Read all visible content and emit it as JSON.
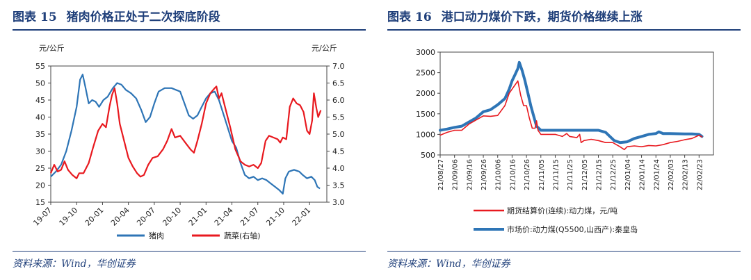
{
  "charts": [
    {
      "figure_label": "图表",
      "figure_number": "15",
      "title_text": "猪肉价格正处于二次探底阶段",
      "source": "资料来源：Wind，华创证券"
    },
    {
      "figure_label": "图表",
      "figure_number": "16",
      "title_text": "港口动力煤价下跌，期货价格继续上涨",
      "source": "资料来源：Wind，华创证券"
    }
  ],
  "chart_data": [
    {
      "type": "line",
      "title": "猪肉价格正处于二次探底阶段",
      "y_unit_left": "元/公斤",
      "y_unit_right": "元/公斤",
      "ylim_left": [
        15,
        55
      ],
      "ylim_right": [
        3.0,
        7.0
      ],
      "yticks_left": [
        "15",
        "20",
        "25",
        "30",
        "35",
        "40",
        "45",
        "50",
        "55"
      ],
      "yticks_right": [
        "3.0",
        "3.5",
        "4.0",
        "4.5",
        "5.0",
        "5.5",
        "6.0",
        "6.5",
        "7.0"
      ],
      "x_domain": [
        0,
        32
      ],
      "x_ticks": [
        {
          "t": 0,
          "label": "19-07"
        },
        {
          "t": 3,
          "label": "19-10"
        },
        {
          "t": 6,
          "label": "20-01"
        },
        {
          "t": 9,
          "label": "20-04"
        },
        {
          "t": 12,
          "label": "20-07"
        },
        {
          "t": 15,
          "label": "20-10"
        },
        {
          "t": 18,
          "label": "21-01"
        },
        {
          "t": 21,
          "label": "21-04"
        },
        {
          "t": 24,
          "label": "21-07"
        },
        {
          "t": 27,
          "label": "21-10"
        },
        {
          "t": 30,
          "label": "22-01"
        }
      ],
      "series": [
        {
          "name": "猪肉",
          "axis": "left",
          "color": "#2e75b6",
          "points": [
            [
              0,
              22.5
            ],
            [
              0.6,
              24
            ],
            [
              1.2,
              26
            ],
            [
              1.8,
              30
            ],
            [
              2.4,
              36
            ],
            [
              3,
              43
            ],
            [
              3.4,
              51
            ],
            [
              3.7,
              52.5
            ],
            [
              4,
              49
            ],
            [
              4.4,
              44
            ],
            [
              4.8,
              45
            ],
            [
              5.2,
              44.5
            ],
            [
              5.6,
              43
            ],
            [
              6.1,
              45
            ],
            [
              6.6,
              46
            ],
            [
              7.2,
              48.5
            ],
            [
              7.7,
              50
            ],
            [
              8.2,
              49.5
            ],
            [
              8.7,
              48
            ],
            [
              9.3,
              47
            ],
            [
              9.9,
              45.5
            ],
            [
              10.5,
              42
            ],
            [
              11,
              38.5
            ],
            [
              11.5,
              40
            ],
            [
              12,
              44
            ],
            [
              12.5,
              47.5
            ],
            [
              13.2,
              48.5
            ],
            [
              14,
              48.5
            ],
            [
              14.5,
              48
            ],
            [
              15,
              47.5
            ],
            [
              15.5,
              44
            ],
            [
              16,
              40.5
            ],
            [
              16.5,
              39.5
            ],
            [
              17,
              40.5
            ],
            [
              17.5,
              43
            ],
            [
              18,
              45.5
            ],
            [
              18.5,
              47
            ],
            [
              19,
              47.5
            ],
            [
              19.5,
              45
            ],
            [
              20,
              41
            ],
            [
              20.5,
              37
            ],
            [
              21,
              33
            ],
            [
              21.5,
              31
            ],
            [
              22,
              26.5
            ],
            [
              22.5,
              23
            ],
            [
              23,
              22
            ],
            [
              23.5,
              22.5
            ],
            [
              24,
              21.5
            ],
            [
              24.5,
              22
            ],
            [
              25,
              21.5
            ],
            [
              25.5,
              20.5
            ],
            [
              26,
              19.5
            ],
            [
              26.5,
              18.5
            ],
            [
              26.9,
              17.5
            ],
            [
              27.2,
              22
            ],
            [
              27.6,
              24
            ],
            [
              28.2,
              24.5
            ],
            [
              28.8,
              24
            ],
            [
              29.2,
              23
            ],
            [
              29.7,
              22
            ],
            [
              30.2,
              22.5
            ],
            [
              30.6,
              21.5
            ],
            [
              30.9,
              19.5
            ],
            [
              31.2,
              19
            ]
          ]
        },
        {
          "name": "蔬菜(右轴)",
          "axis": "right",
          "color": "#e8191f",
          "points": [
            [
              0,
              3.85
            ],
            [
              0.4,
              4.1
            ],
            [
              0.8,
              3.9
            ],
            [
              1.2,
              3.95
            ],
            [
              1.6,
              4.2
            ],
            [
              2,
              3.95
            ],
            [
              2.5,
              3.8
            ],
            [
              3,
              3.7
            ],
            [
              3.3,
              3.85
            ],
            [
              3.8,
              3.85
            ],
            [
              4.4,
              4.15
            ],
            [
              4.9,
              4.6
            ],
            [
              5.5,
              5.1
            ],
            [
              6,
              5.3
            ],
            [
              6.4,
              5.2
            ],
            [
              6.8,
              5.8
            ],
            [
              7.1,
              6.15
            ],
            [
              7.4,
              6.35
            ],
            [
              7.7,
              5.9
            ],
            [
              8,
              5.3
            ],
            [
              8.5,
              4.8
            ],
            [
              9,
              4.3
            ],
            [
              9.5,
              4.05
            ],
            [
              10,
              3.85
            ],
            [
              10.4,
              3.75
            ],
            [
              10.8,
              3.8
            ],
            [
              11.3,
              4.1
            ],
            [
              11.8,
              4.3
            ],
            [
              12.4,
              4.35
            ],
            [
              13,
              4.55
            ],
            [
              13.5,
              4.8
            ],
            [
              14,
              5.15
            ],
            [
              14.4,
              4.9
            ],
            [
              15,
              4.95
            ],
            [
              15.6,
              4.75
            ],
            [
              16.2,
              4.55
            ],
            [
              16.6,
              4.45
            ],
            [
              17,
              4.8
            ],
            [
              17.5,
              5.3
            ],
            [
              18,
              5.9
            ],
            [
              18.5,
              6.2
            ],
            [
              19,
              6.35
            ],
            [
              19.2,
              6.4
            ],
            [
              19.5,
              6.05
            ],
            [
              19.8,
              6.2
            ],
            [
              20.2,
              5.8
            ],
            [
              20.8,
              5.2
            ],
            [
              21.4,
              4.55
            ],
            [
              22,
              4.2
            ],
            [
              22.5,
              4.1
            ],
            [
              23,
              4.05
            ],
            [
              23.5,
              4.1
            ],
            [
              24,
              4.0
            ],
            [
              24.4,
              4.15
            ],
            [
              24.9,
              4.8
            ],
            [
              25.3,
              4.95
            ],
            [
              25.8,
              4.9
            ],
            [
              26.3,
              4.85
            ],
            [
              26.6,
              4.75
            ],
            [
              26.9,
              4.9
            ],
            [
              27.3,
              4.85
            ],
            [
              27.7,
              5.8
            ],
            [
              28.1,
              6.05
            ],
            [
              28.5,
              5.9
            ],
            [
              28.9,
              5.85
            ],
            [
              29.3,
              5.65
            ],
            [
              29.7,
              5.1
            ],
            [
              30,
              5.0
            ],
            [
              30.3,
              5.4
            ],
            [
              30.5,
              6.2
            ],
            [
              30.8,
              5.75
            ],
            [
              31,
              5.5
            ],
            [
              31.3,
              5.7
            ]
          ]
        }
      ]
    },
    {
      "type": "line",
      "title": "港口动力煤价下跌，期货价格继续上涨",
      "ylim": [
        500,
        3000
      ],
      "yticks": [
        "500",
        "1000",
        "1500",
        "2000",
        "2500",
        "3000"
      ],
      "x_domain": [
        0,
        190
      ],
      "x_ticks": [
        {
          "t": 0,
          "label": "21/08/27"
        },
        {
          "t": 10,
          "label": "21/09/06"
        },
        {
          "t": 20,
          "label": "21/09/16"
        },
        {
          "t": 30,
          "label": "21/09/26"
        },
        {
          "t": 40,
          "label": "21/10/06"
        },
        {
          "t": 50,
          "label": "21/10/16"
        },
        {
          "t": 60,
          "label": "21/10/26"
        },
        {
          "t": 70,
          "label": "21/11/05"
        },
        {
          "t": 80,
          "label": "21/11/15"
        },
        {
          "t": 90,
          "label": "21/11/25"
        },
        {
          "t": 100,
          "label": "21/12/05"
        },
        {
          "t": 110,
          "label": "21/12/15"
        },
        {
          "t": 120,
          "label": "21/12/25"
        },
        {
          "t": 130,
          "label": "22/01/04"
        },
        {
          "t": 140,
          "label": "22/01/14"
        },
        {
          "t": 150,
          "label": "22/01/24"
        },
        {
          "t": 160,
          "label": "22/02/03"
        },
        {
          "t": 170,
          "label": "22/02/13"
        },
        {
          "t": 180,
          "label": "22/02/23"
        }
      ],
      "series": [
        {
          "name": "期货结算价(连续):动力煤，元/吨",
          "color": "#e8191f",
          "width": 1.6,
          "points": [
            [
              0,
              980
            ],
            [
              5,
              1050
            ],
            [
              10,
              1100
            ],
            [
              15,
              1100
            ],
            [
              20,
              1250
            ],
            [
              25,
              1350
            ],
            [
              30,
              1450
            ],
            [
              35,
              1440
            ],
            [
              40,
              1460
            ],
            [
              45,
              1700
            ],
            [
              48,
              2000
            ],
            [
              50,
              2100
            ],
            [
              52,
              2200
            ],
            [
              54,
              2300
            ],
            [
              56,
              1950
            ],
            [
              58,
              1700
            ],
            [
              60,
              1700
            ],
            [
              62,
              1400
            ],
            [
              64,
              1150
            ],
            [
              66,
              1150
            ],
            [
              67,
              1330
            ],
            [
              68,
              1100
            ],
            [
              70,
              1000
            ],
            [
              75,
              1000
            ],
            [
              80,
              1000
            ],
            [
              85,
              950
            ],
            [
              88,
              1020
            ],
            [
              90,
              950
            ],
            [
              95,
              920
            ],
            [
              97,
              1000
            ],
            [
              98,
              800
            ],
            [
              100,
              850
            ],
            [
              105,
              880
            ],
            [
              110,
              850
            ],
            [
              115,
              800
            ],
            [
              120,
              800
            ],
            [
              125,
              700
            ],
            [
              128,
              630
            ],
            [
              130,
              700
            ],
            [
              135,
              720
            ],
            [
              140,
              700
            ],
            [
              145,
              730
            ],
            [
              150,
              720
            ],
            [
              155,
              750
            ],
            [
              160,
              800
            ],
            [
              165,
              830
            ],
            [
              170,
              870
            ],
            [
              175,
              900
            ],
            [
              180,
              980
            ],
            [
              182,
              940
            ]
          ]
        },
        {
          "name": "市场价:动力煤(Q5500,山西产):秦皇岛",
          "color": "#2e75b6",
          "width": 4,
          "points": [
            [
              0,
              1100
            ],
            [
              5,
              1130
            ],
            [
              10,
              1170
            ],
            [
              15,
              1200
            ],
            [
              20,
              1300
            ],
            [
              25,
              1400
            ],
            [
              30,
              1550
            ],
            [
              35,
              1600
            ],
            [
              40,
              1720
            ],
            [
              45,
              1870
            ],
            [
              48,
              2100
            ],
            [
              50,
              2300
            ],
            [
              52,
              2450
            ],
            [
              54,
              2600
            ],
            [
              55,
              2750
            ],
            [
              57,
              2550
            ],
            [
              59,
              2300
            ],
            [
              61,
              2000
            ],
            [
              63,
              1700
            ],
            [
              65,
              1450
            ],
            [
              67,
              1200
            ],
            [
              70,
              1100
            ],
            [
              80,
              1100
            ],
            [
              90,
              1100
            ],
            [
              100,
              1100
            ],
            [
              110,
              1100
            ],
            [
              115,
              1050
            ],
            [
              118,
              950
            ],
            [
              121,
              850
            ],
            [
              125,
              800
            ],
            [
              130,
              820
            ],
            [
              135,
              900
            ],
            [
              140,
              950
            ],
            [
              145,
              1000
            ],
            [
              150,
              1020
            ],
            [
              152,
              1060
            ],
            [
              155,
              1020
            ],
            [
              160,
              1020
            ],
            [
              170,
              1010
            ],
            [
              175,
              1010
            ],
            [
              180,
              1000
            ],
            [
              182,
              950
            ]
          ]
        }
      ]
    }
  ]
}
